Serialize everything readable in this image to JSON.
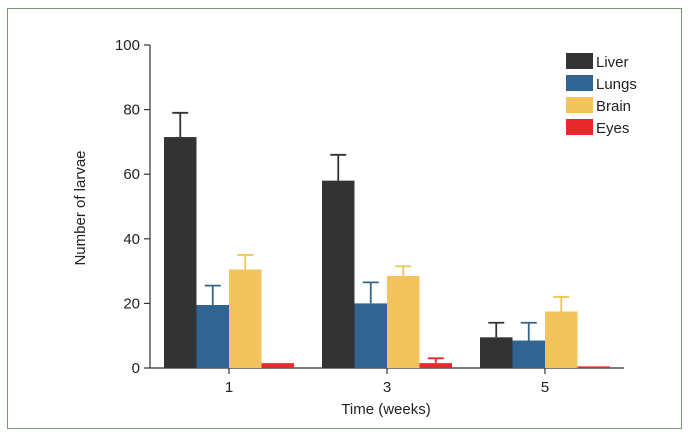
{
  "chart_data": {
    "type": "bar",
    "title": "",
    "xlabel": "Time (weeks)",
    "ylabel": "Number of larvae",
    "categories": [
      "1",
      "3",
      "5"
    ],
    "ylim": [
      0,
      100
    ],
    "yticks": [
      0,
      20,
      40,
      60,
      80,
      100
    ],
    "ytick_labels": [
      "0",
      "20",
      "40",
      "60",
      "80",
      "100"
    ],
    "grid": false,
    "legend_position": "top-right",
    "series": [
      {
        "name": "Liver",
        "color": "#333333",
        "values": [
          71.5,
          58,
          9.5
        ],
        "errors": [
          7.5,
          8,
          4.5
        ]
      },
      {
        "name": "Lungs",
        "color": "#2f6590",
        "values": [
          19.5,
          20,
          8.5
        ],
        "errors": [
          6,
          6.5,
          5.5
        ]
      },
      {
        "name": "Brain",
        "color": "#f3c45e",
        "values": [
          30.5,
          28.5,
          17.5
        ],
        "errors": [
          4.5,
          3,
          4.5
        ]
      },
      {
        "name": "Eyes",
        "color": "#e8282b",
        "values": [
          1.5,
          1.5,
          0.5
        ],
        "errors": [
          0,
          1.5,
          0
        ]
      }
    ]
  }
}
